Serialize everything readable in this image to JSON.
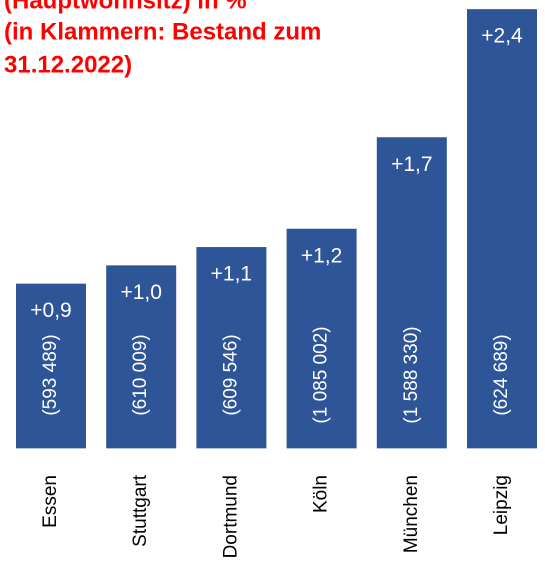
{
  "chart_data": {
    "type": "bar",
    "title_lines": [
      "(Hauptwohnsitz) in %",
      "(in Klammern: Bestand zum",
      "31.12.2022)"
    ],
    "categories": [
      "Essen",
      "Stuttgart",
      "Dortmund",
      "Köln",
      "München",
      "Leipzig"
    ],
    "values": [
      0.9,
      1.0,
      1.1,
      1.2,
      1.7,
      2.4
    ],
    "value_labels": [
      "+0,9",
      "+1,0",
      "+1,1",
      "+1,2",
      "+1,7",
      "+2,4"
    ],
    "inner_labels": [
      "(593 489)",
      "(610 009)",
      "(609 546)",
      "(1 085 002)",
      "(1 588 330)",
      "(624 689)"
    ],
    "color": "#2e5597",
    "ylim": [
      -0.08,
      2.45
    ]
  }
}
